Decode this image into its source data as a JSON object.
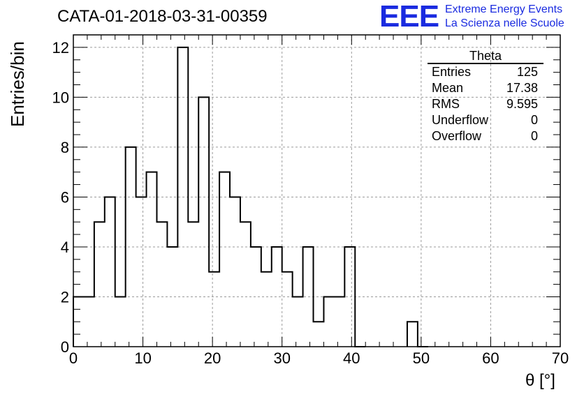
{
  "header": {
    "title": "CATA-01-2018-03-31-00359",
    "logo_mark": "EEE",
    "logo_line1": "Extreme Energy Events",
    "logo_line2": "La Scienza nelle Scuole"
  },
  "stats": {
    "title": "Theta",
    "rows": [
      {
        "label": "Entries",
        "value": "125"
      },
      {
        "label": "Mean",
        "value": "17.38"
      },
      {
        "label": "RMS",
        "value": "9.595"
      },
      {
        "label": "Underflow",
        "value": "0"
      },
      {
        "label": "Overflow",
        "value": "0"
      }
    ]
  },
  "colors": {
    "logo": "#1a2be0",
    "line": "#000000",
    "grid": "#9a9a9a"
  },
  "chart_data": {
    "type": "bar",
    "histogram": true,
    "title": "CATA-01-2018-03-31-00359",
    "xlabel": "θ [°]",
    "ylabel": "Entries/bin",
    "xlim": [
      0,
      70
    ],
    "ylim": [
      0,
      12.5
    ],
    "bin_width": 1.5,
    "x_ticks": [
      0,
      10,
      20,
      30,
      40,
      50,
      60,
      70
    ],
    "y_ticks": [
      0,
      2,
      4,
      6,
      8,
      10,
      12
    ],
    "grid": true,
    "legend": "top-right stats box",
    "bins": [
      {
        "x": 0,
        "value": 2
      },
      {
        "x": 1.5,
        "value": 2
      },
      {
        "x": 3,
        "value": 5
      },
      {
        "x": 4.5,
        "value": 6
      },
      {
        "x": 6,
        "value": 2
      },
      {
        "x": 7.5,
        "value": 8
      },
      {
        "x": 9,
        "value": 6
      },
      {
        "x": 10.5,
        "value": 7
      },
      {
        "x": 12,
        "value": 5
      },
      {
        "x": 13.5,
        "value": 4
      },
      {
        "x": 15,
        "value": 12
      },
      {
        "x": 16.5,
        "value": 5
      },
      {
        "x": 18,
        "value": 10
      },
      {
        "x": 19.5,
        "value": 3
      },
      {
        "x": 21,
        "value": 7
      },
      {
        "x": 22.5,
        "value": 6
      },
      {
        "x": 24,
        "value": 5
      },
      {
        "x": 25.5,
        "value": 4
      },
      {
        "x": 27,
        "value": 3
      },
      {
        "x": 28.5,
        "value": 4
      },
      {
        "x": 30,
        "value": 3
      },
      {
        "x": 31.5,
        "value": 2
      },
      {
        "x": 33,
        "value": 4
      },
      {
        "x": 34.5,
        "value": 1
      },
      {
        "x": 36,
        "value": 2
      },
      {
        "x": 37.5,
        "value": 2
      },
      {
        "x": 39,
        "value": 4
      },
      {
        "x": 40.5,
        "value": 0
      },
      {
        "x": 48,
        "value": 1
      },
      {
        "x": 49.5,
        "value": 0
      }
    ]
  }
}
